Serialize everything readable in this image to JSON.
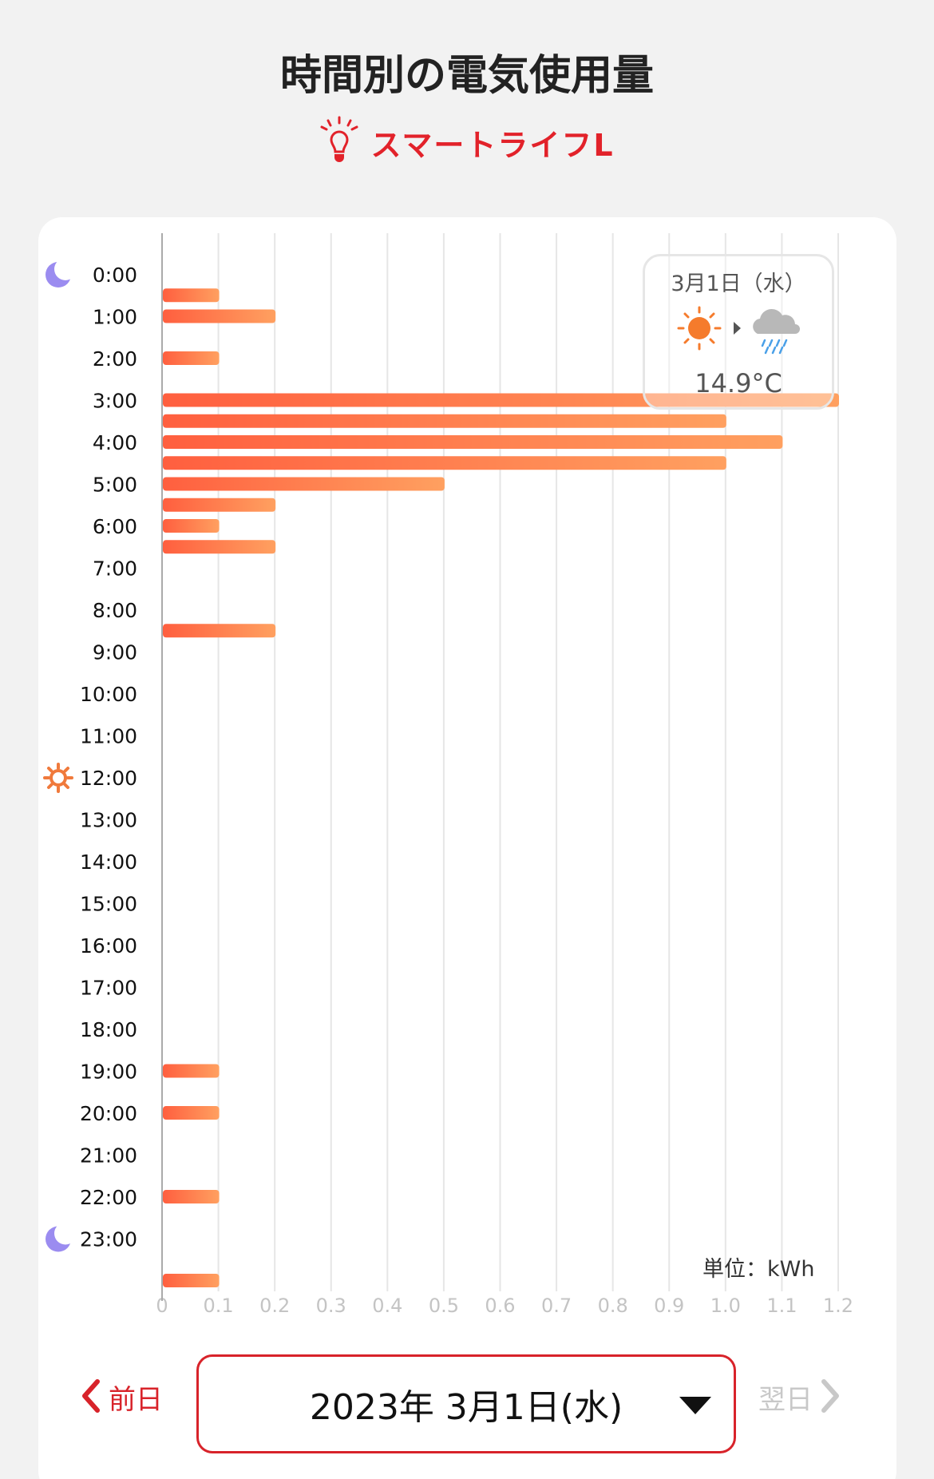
{
  "header": {
    "title": "時間別の電気使用量",
    "plan_name": "スマートライフL",
    "plan_icon": "lightbulb-icon"
  },
  "weather": {
    "date": "3月1日（水）",
    "from_icon": "sun-icon",
    "to_icon": "rain-cloud-icon",
    "temperature": "14.9°C"
  },
  "unit_label": "単位：kWh",
  "navigation": {
    "prev_label": "前日",
    "next_label": "翌日",
    "selected_date": "2023年 3月1日(水)"
  },
  "colors": {
    "accent": "#d8232a",
    "bar_start": "#ff5f3f",
    "bar_end": "#ffa060",
    "moon": "#9b8cf0",
    "sun": "#f07a3c"
  },
  "chart_data": {
    "type": "bar",
    "orientation": "horizontal",
    "title": "",
    "xlabel": "",
    "ylabel": "",
    "unit": "kWh",
    "xlim": [
      0,
      1.2
    ],
    "x_ticks": [
      "0",
      "0.1",
      "0.2",
      "0.3",
      "0.4",
      "0.5",
      "0.6",
      "0.7",
      "0.8",
      "0.9",
      "1.0",
      "1.1",
      "1.2"
    ],
    "grid": true,
    "hour_labels": [
      "0:00",
      "1:00",
      "2:00",
      "3:00",
      "4:00",
      "5:00",
      "6:00",
      "7:00",
      "8:00",
      "9:00",
      "10:00",
      "11:00",
      "12:00",
      "13:00",
      "14:00",
      "15:00",
      "16:00",
      "17:00",
      "18:00",
      "19:00",
      "20:00",
      "21:00",
      "22:00",
      "23:00"
    ],
    "marker_hours": [
      {
        "hour": "0:00",
        "icon": "moon-icon"
      },
      {
        "hour": "12:00",
        "icon": "sun-icon"
      },
      {
        "hour": "23:00",
        "icon": "moon-icon"
      }
    ],
    "interval_minutes": 30,
    "values": [
      0.1,
      0.2,
      0,
      0.1,
      0.0,
      1.2,
      1.0,
      1.1,
      1.0,
      0.5,
      0.2,
      0.1,
      0.2,
      0,
      0,
      0,
      0.2,
      0,
      0,
      0,
      0,
      0,
      0,
      0,
      0,
      0,
      0,
      0,
      0,
      0,
      0,
      0,
      0,
      0,
      0,
      0,
      0,
      0.1,
      0,
      0.1,
      0,
      0,
      0,
      0.1,
      0,
      0,
      0,
      0.1
    ]
  }
}
